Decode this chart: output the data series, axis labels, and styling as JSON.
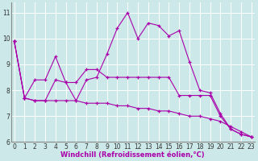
{
  "xlabel": "Windchill (Refroidissement éolien,°C)",
  "bg_color": "#cce8e8",
  "line_color": "#aa00aa",
  "grid_color": "#b8d8d8",
  "spine_color": "#aa00aa",
  "xlim": [
    -0.3,
    23.3
  ],
  "ylim": [
    6.0,
    11.4
  ],
  "yticks": [
    6,
    7,
    8,
    9,
    10,
    11
  ],
  "xticks": [
    0,
    1,
    2,
    3,
    4,
    5,
    6,
    7,
    8,
    9,
    10,
    11,
    12,
    13,
    14,
    15,
    16,
    17,
    18,
    19,
    20,
    21,
    22,
    23
  ],
  "series": [
    [
      9.9,
      7.7,
      7.6,
      7.6,
      8.4,
      8.3,
      7.6,
      8.4,
      8.5,
      9.4,
      10.4,
      11.0,
      10.0,
      10.6,
      10.5,
      10.1,
      10.3,
      9.1,
      8.0,
      7.9,
      7.1,
      6.5,
      6.3,
      6.2
    ],
    [
      9.9,
      7.7,
      8.4,
      8.4,
      9.3,
      8.3,
      8.3,
      8.8,
      8.8,
      8.5,
      8.5,
      8.5,
      8.5,
      8.5,
      8.5,
      8.5,
      7.8,
      7.8,
      7.8,
      7.8,
      7.0,
      6.5,
      6.3,
      6.2
    ],
    [
      9.9,
      7.7,
      7.6,
      7.6,
      7.6,
      7.6,
      7.6,
      7.5,
      7.5,
      7.5,
      7.4,
      7.4,
      7.3,
      7.3,
      7.2,
      7.2,
      7.1,
      7.0,
      7.0,
      6.9,
      6.8,
      6.6,
      6.4,
      6.2
    ]
  ],
  "tick_fontsize": 5.5,
  "xlabel_fontsize": 6.0
}
